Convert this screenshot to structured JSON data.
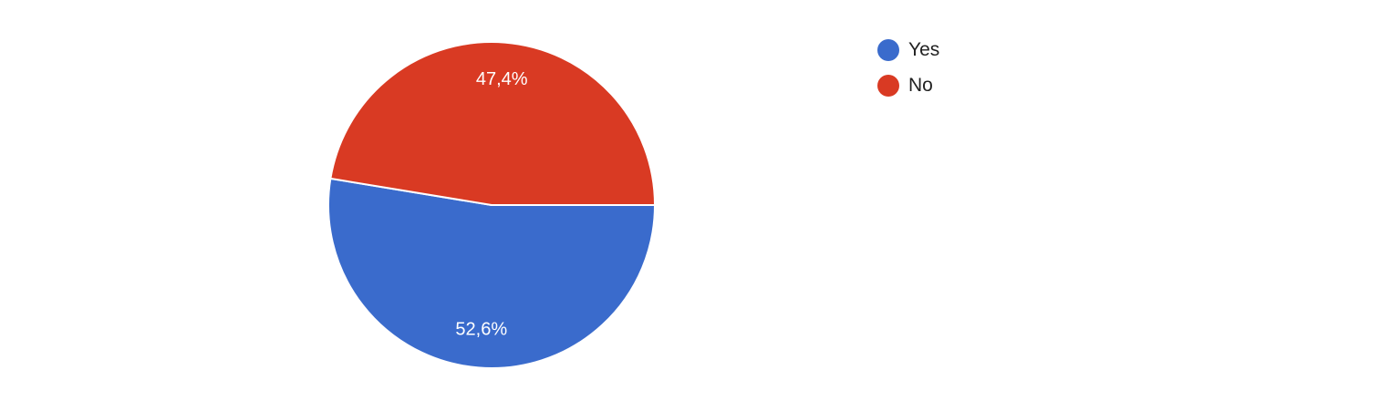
{
  "chart_data": {
    "type": "pie",
    "series": [
      {
        "name": "Yes",
        "value": 52.6,
        "label": "52,6%",
        "color": "#3a6bcc"
      },
      {
        "name": "No",
        "value": 47.4,
        "label": "47,4%",
        "color": "#d93a23"
      }
    ],
    "legend_position": "top-right"
  }
}
